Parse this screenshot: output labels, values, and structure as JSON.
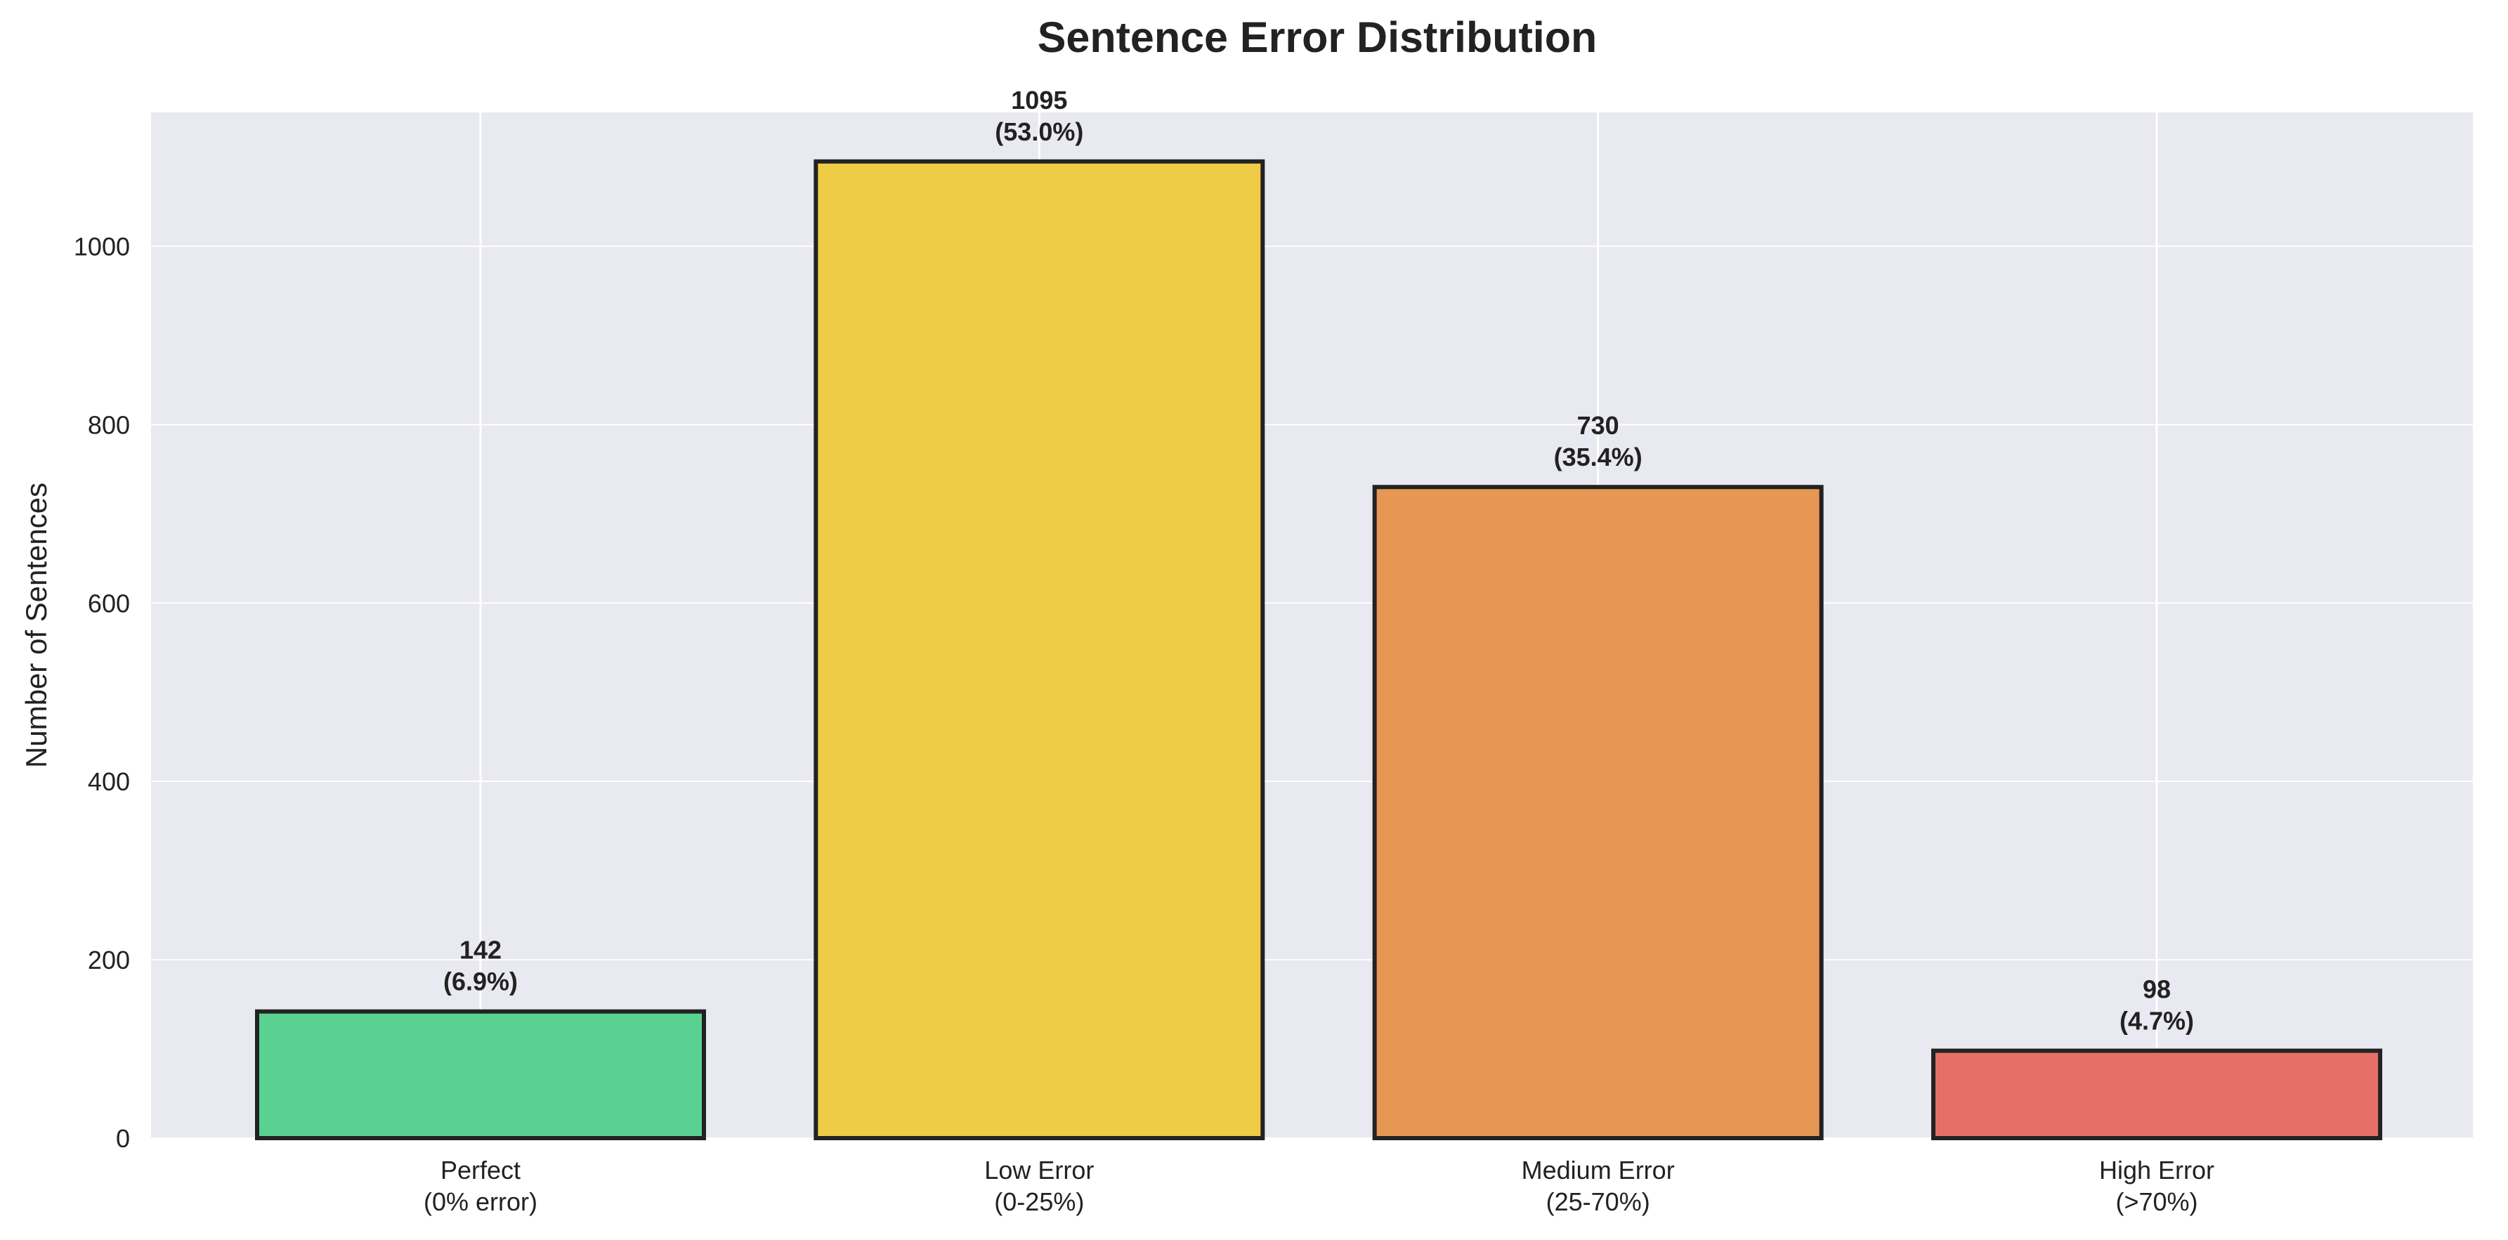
{
  "chart_data": {
    "type": "bar",
    "title": "Sentence Error Distribution",
    "xlabel": "",
    "ylabel": "Number of Sentences",
    "categories": [
      [
        "Perfect",
        "(0% error)"
      ],
      [
        "Low Error",
        "(0-25%)"
      ],
      [
        "Medium Error",
        "(25-70%)"
      ],
      [
        "High Error",
        "(>70%)"
      ]
    ],
    "values": [
      142,
      1095,
      730,
      98
    ],
    "data_labels": [
      [
        "142",
        "(6.9%)"
      ],
      [
        "1095",
        "(53.0%)"
      ],
      [
        "730",
        "(35.4%)"
      ],
      [
        "98",
        "(4.7%)"
      ]
    ],
    "colors": [
      "#55d08c",
      "#edca3f",
      "#e5944d",
      "#e66b61"
    ],
    "edge_color": "#222222",
    "background": "#e9e9f1",
    "grid_color": "#ffffff",
    "ylim": [
      0,
      1150
    ],
    "yticks": [
      0,
      200,
      400,
      600,
      800,
      1000
    ],
    "ytick_labels": [
      "0",
      "200",
      "400",
      "600",
      "800",
      "1000"
    ],
    "grid": true,
    "legend": "none"
  }
}
